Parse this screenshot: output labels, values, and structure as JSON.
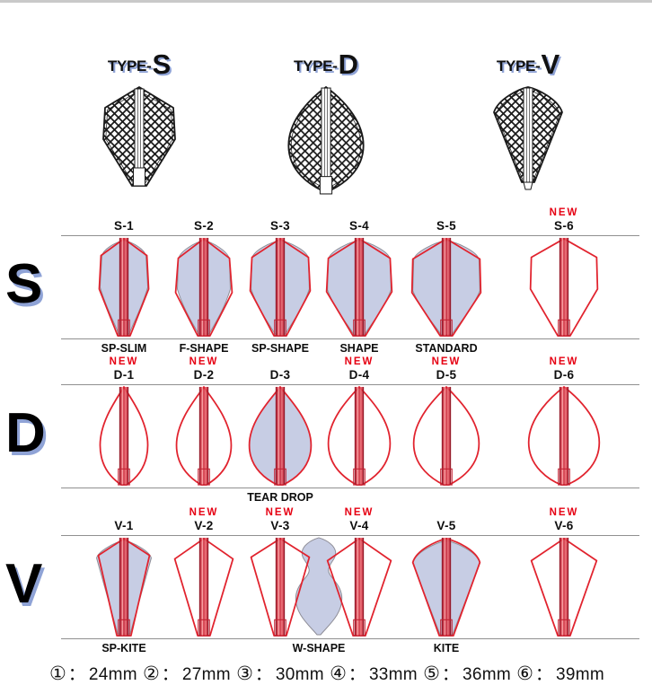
{
  "new_label": "NEW",
  "type_headers": [
    {
      "prefix": "TYPE-",
      "letter": "S"
    },
    {
      "prefix": "TYPE-",
      "letter": "D"
    },
    {
      "prefix": "TYPE-",
      "letter": "V"
    }
  ],
  "rows": [
    {
      "letter": "S",
      "items": [
        {
          "id": "S-1",
          "new": false,
          "sublabel": "SP-SLIM",
          "outline": "s1",
          "fill": "s1f"
        },
        {
          "id": "S-2",
          "new": false,
          "sublabel": "F-SHAPE",
          "outline": "s2",
          "fill": "s2f"
        },
        {
          "id": "S-3",
          "new": false,
          "sublabel": "SP-SHAPE",
          "outline": "s3",
          "fill": "s3f"
        },
        {
          "id": "S-4",
          "new": false,
          "sublabel": "SHAPE",
          "outline": "s4",
          "fill": "s4f"
        },
        {
          "id": "S-5",
          "new": false,
          "sublabel": "STANDARD",
          "outline": "s5",
          "fill": "s5f"
        },
        {
          "id": "S-6",
          "new": true,
          "sublabel": "",
          "outline": "s6",
          "fill": ""
        }
      ]
    },
    {
      "letter": "D",
      "items": [
        {
          "id": "D-1",
          "new": true,
          "sublabel": "",
          "outline": "d1",
          "fill": ""
        },
        {
          "id": "D-2",
          "new": true,
          "sublabel": "",
          "outline": "d2",
          "fill": ""
        },
        {
          "id": "D-3",
          "new": false,
          "sublabel": "TEAR DROP",
          "outline": "d3",
          "fill": "d3f"
        },
        {
          "id": "D-4",
          "new": true,
          "sublabel": "",
          "outline": "d4",
          "fill": ""
        },
        {
          "id": "D-5",
          "new": true,
          "sublabel": "",
          "outline": "d5",
          "fill": ""
        },
        {
          "id": "D-6",
          "new": true,
          "sublabel": "",
          "outline": "d6",
          "fill": ""
        }
      ]
    },
    {
      "letter": "V",
      "items": [
        {
          "id": "V-1",
          "new": false,
          "sublabel": "SP-KITE",
          "outline": "v1",
          "fill": "v1f"
        },
        {
          "id": "V-2",
          "new": true,
          "sublabel": "",
          "outline": "v2",
          "fill": ""
        },
        {
          "id": "V-3",
          "new": true,
          "sublabel": "",
          "outline": "v3",
          "fill": ""
        },
        {
          "id": "V-4",
          "new": true,
          "sublabel": "",
          "outline": "v4",
          "fill": ""
        },
        {
          "id": "V-5",
          "new": false,
          "sublabel": "KITE",
          "outline": "v5",
          "fill": "v5f"
        },
        {
          "id": "V-6",
          "new": true,
          "sublabel": "",
          "outline": "v6",
          "fill": ""
        }
      ],
      "overlay": {
        "label": "W-SHAPE",
        "shape": "w"
      }
    }
  ],
  "legend": {
    "separator": "：",
    "items": [
      {
        "symbol": "①",
        "size": "24mm"
      },
      {
        "symbol": "②",
        "size": "27mm"
      },
      {
        "symbol": "③",
        "size": "30mm"
      },
      {
        "symbol": "④",
        "size": "33mm"
      },
      {
        "symbol": "⑤",
        "size": "36mm"
      },
      {
        "symbol": "⑥",
        "size": "39mm"
      }
    ]
  },
  "colors": {
    "outline_red": "#e1232e",
    "new_red": "#e60012",
    "fill_lavender": "#c7cde4",
    "fill_stroke_gray": "#8e8d96",
    "letter_shadow_blue": "#8fa3d6",
    "row_line_gray": "#909090",
    "text_ink": "#111111"
  }
}
